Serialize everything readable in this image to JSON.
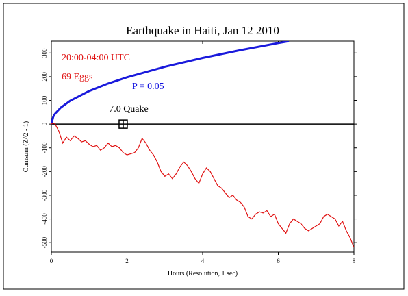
{
  "chart_data": {
    "type": "line",
    "title": "Earthquake in Haiti, Jan 12 2010",
    "xlabel": "Hours (Resolution, 1 sec)",
    "ylabel": "Cumsum (Z^2 - 1)",
    "xlim": [
      0,
      8
    ],
    "xticks": [
      0,
      2,
      4,
      6,
      8
    ],
    "ylim": [
      -540,
      350
    ],
    "yticks": [
      -500,
      -400,
      -300,
      -200,
      -100,
      0,
      100,
      200,
      300
    ],
    "annotations": [
      {
        "text": "20:00-04:00 UTC",
        "color": "#e01010"
      },
      {
        "text": "69 Eggs",
        "color": "#e01010"
      },
      {
        "text": "P = 0.05",
        "color": "#1010e0"
      }
    ],
    "event": {
      "label": "7.0 Quake",
      "x": 1.9,
      "y": 0
    },
    "series": [
      {
        "name": "P = 0.05 envelope",
        "color": "#1a1adc",
        "x": [
          0,
          0.05,
          0.1,
          0.25,
          0.5,
          1,
          1.5,
          2,
          3,
          4,
          5,
          6,
          6.28
        ],
        "values": [
          0,
          31.2,
          44.1,
          69.8,
          98.7,
          139.6,
          171,
          197.4,
          241.8,
          279.2,
          312.2,
          342,
          349.8
        ]
      },
      {
        "name": "Cumsum",
        "color": "#e01010",
        "x": [
          0,
          0.05,
          0.1,
          0.2,
          0.3,
          0.4,
          0.5,
          0.6,
          0.7,
          0.8,
          0.9,
          1.0,
          1.1,
          1.2,
          1.3,
          1.4,
          1.5,
          1.6,
          1.7,
          1.8,
          1.9,
          2.0,
          2.1,
          2.2,
          2.3,
          2.4,
          2.5,
          2.6,
          2.7,
          2.8,
          2.9,
          3.0,
          3.1,
          3.2,
          3.3,
          3.4,
          3.5,
          3.6,
          3.7,
          3.8,
          3.9,
          4.0,
          4.1,
          4.2,
          4.3,
          4.4,
          4.5,
          4.6,
          4.7,
          4.8,
          4.9,
          5.0,
          5.1,
          5.2,
          5.3,
          5.4,
          5.5,
          5.6,
          5.7,
          5.8,
          5.9,
          6.0,
          6.1,
          6.2,
          6.3,
          6.4,
          6.5,
          6.6,
          6.7,
          6.8,
          6.9,
          7.0,
          7.1,
          7.2,
          7.3,
          7.4,
          7.5,
          7.6,
          7.7,
          7.8,
          7.9,
          8.0
        ],
        "values": [
          0,
          5,
          0,
          -30,
          -80,
          -55,
          -70,
          -50,
          -60,
          -75,
          -70,
          -85,
          -95,
          -90,
          -110,
          -100,
          -80,
          -95,
          -90,
          -100,
          -120,
          -130,
          -125,
          -120,
          -100,
          -60,
          -80,
          -110,
          -130,
          -160,
          -200,
          -220,
          -210,
          -230,
          -210,
          -180,
          -160,
          -175,
          -200,
          -230,
          -250,
          -210,
          -185,
          -200,
          -230,
          -260,
          -270,
          -290,
          -310,
          -300,
          -320,
          -330,
          -350,
          -390,
          -400,
          -380,
          -370,
          -375,
          -365,
          -390,
          -380,
          -420,
          -440,
          -460,
          -420,
          -400,
          -410,
          -420,
          -440,
          -450,
          -440,
          -430,
          -420,
          -390,
          -380,
          -390,
          -400,
          -430,
          -410,
          -450,
          -480,
          -520
        ]
      }
    ]
  }
}
